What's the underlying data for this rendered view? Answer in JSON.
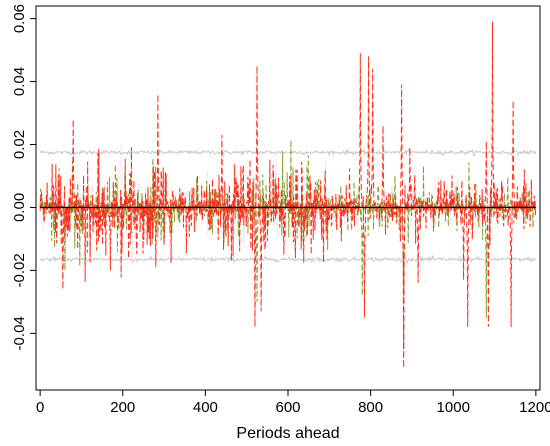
{
  "chart_data": {
    "type": "line",
    "title": "",
    "xlabel": "Periods ahead",
    "ylabel": "",
    "xlim": [
      -10,
      1210
    ],
    "ylim": [
      -0.058,
      0.064
    ],
    "x_ticks": [
      0,
      200,
      400,
      600,
      800,
      1000,
      1200
    ],
    "x_tick_labels": [
      "0",
      "200",
      "400",
      "600",
      "800",
      "1000",
      "1200"
    ],
    "y_ticks": [
      -0.04,
      -0.02,
      0.0,
      0.02,
      0.04,
      0.06
    ],
    "y_tick_labels": [
      "-0.04",
      "-0.02",
      "0.00",
      "0.02",
      "0.04",
      "0.06"
    ],
    "grid": false,
    "legend": "none",
    "n_periods": 1200,
    "zero_line": 0.0,
    "series": [
      {
        "style": "dashed",
        "color": "#ff2a1a",
        "spikes": [
          {
            "x": 80,
            "y": 0.028
          },
          {
            "x": 55,
            "y": -0.026
          },
          {
            "x": 170,
            "y": -0.02
          },
          {
            "x": 285,
            "y": 0.036
          },
          {
            "x": 280,
            "y": -0.019
          },
          {
            "x": 440,
            "y": 0.023
          },
          {
            "x": 525,
            "y": 0.045
          },
          {
            "x": 520,
            "y": -0.038
          },
          {
            "x": 535,
            "y": -0.033
          },
          {
            "x": 590,
            "y": -0.015
          },
          {
            "x": 775,
            "y": 0.049
          },
          {
            "x": 795,
            "y": 0.048
          },
          {
            "x": 805,
            "y": 0.044
          },
          {
            "x": 785,
            "y": -0.035
          },
          {
            "x": 830,
            "y": 0.026
          },
          {
            "x": 875,
            "y": 0.039
          },
          {
            "x": 880,
            "y": -0.051
          },
          {
            "x": 895,
            "y": 0.019
          },
          {
            "x": 915,
            "y": -0.024
          },
          {
            "x": 1025,
            "y": -0.023
          },
          {
            "x": 1035,
            "y": -0.038
          },
          {
            "x": 1080,
            "y": 0.021
          },
          {
            "x": 1095,
            "y": 0.059
          },
          {
            "x": 1085,
            "y": -0.038
          },
          {
            "x": 1145,
            "y": 0.034
          },
          {
            "x": 1140,
            "y": -0.038
          }
        ]
      },
      {
        "style": "dashed",
        "color": "#8a9a2a",
        "note_free": true,
        "spikes": [
          {
            "x": 60,
            "y": -0.02
          },
          {
            "x": 525,
            "y": -0.03
          },
          {
            "x": 780,
            "y": -0.028
          },
          {
            "x": 880,
            "y": -0.045
          },
          {
            "x": 1080,
            "y": -0.035
          }
        ]
      },
      {
        "style": "solid",
        "color": "#c8c8c8",
        "band_upper": 0.0175,
        "band_lower": -0.0165
      }
    ]
  }
}
